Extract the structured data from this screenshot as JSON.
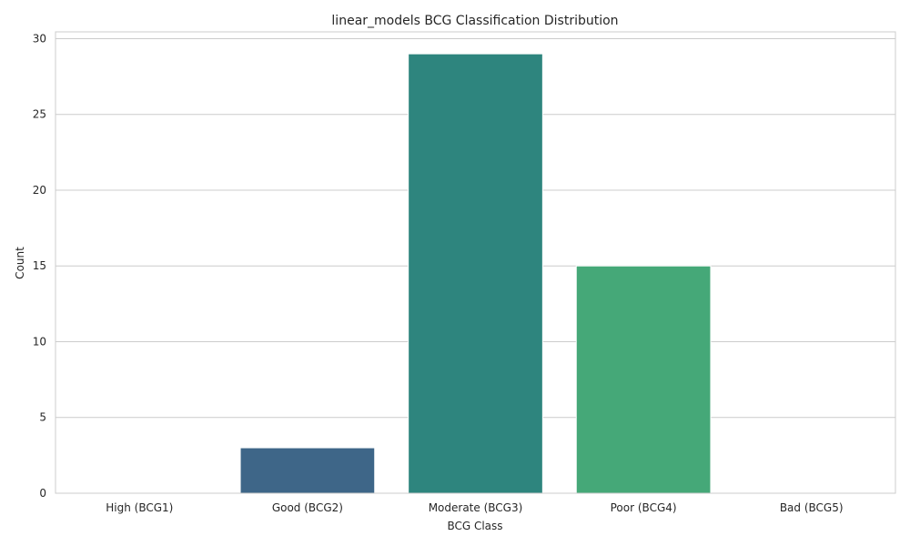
{
  "chart_data": {
    "type": "bar",
    "title": "linear_models BCG Classification Distribution",
    "xlabel": "BCG Class",
    "ylabel": "Count",
    "categories": [
      "High (BCG1)",
      "Good (BCG2)",
      "Moderate (BCG3)",
      "Poor (BCG4)",
      "Bad (BCG5)"
    ],
    "values": [
      0,
      3,
      29,
      15,
      0
    ],
    "colors": [
      "#482878",
      "#3e6688",
      "#2e857e",
      "#45a878",
      "#8ad25c"
    ],
    "ylim": [
      0,
      30.45
    ],
    "yticks": [
      0,
      5,
      10,
      15,
      20,
      25,
      30
    ],
    "grid": true,
    "legend": "none"
  }
}
